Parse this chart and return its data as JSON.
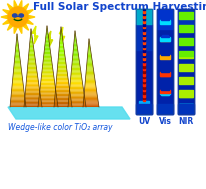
{
  "title": "Full Solar Spectrum Harvesting",
  "title_color": "#1144cc",
  "title_fontsize": 7.5,
  "subtitle": "Wedge-like color TiO₂ array",
  "subtitle_color": "#1155dd",
  "subtitle_fontsize": 5.5,
  "bar_labels": [
    "UV",
    "Vis",
    "NIR"
  ],
  "bar_label_color": "#1144cc",
  "bar_label_fontsize": 5.5,
  "bg_color": "#ffffff"
}
